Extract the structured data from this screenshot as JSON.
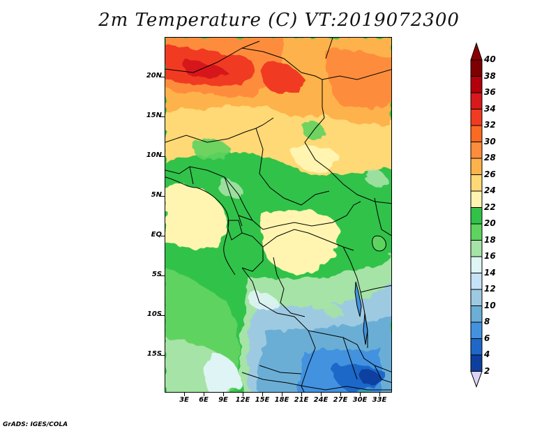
{
  "title": "2m Temperature (C) VT:2019072300",
  "credit": "GrADS: IGES/COLA",
  "lat_labels": [
    "20N",
    "15N",
    "10N",
    "5N",
    "EQ",
    "5S",
    "10S",
    "15S"
  ],
  "lon_labels": [
    "3E",
    "6E",
    "9E",
    "12E",
    "15E",
    "18E",
    "21E",
    "24E",
    "27E",
    "30E",
    "33E"
  ],
  "colorbar": {
    "labels": [
      "40",
      "38",
      "36",
      "34",
      "32",
      "30",
      "28",
      "26",
      "24",
      "22",
      "20",
      "18",
      "16",
      "14",
      "12",
      "10",
      "8",
      "6",
      "4",
      "2"
    ],
    "colors": [
      "#7f0000",
      "#b3000c",
      "#d7191c",
      "#f03b20",
      "#fb6a20",
      "#fd8d3c",
      "#feb24c",
      "#fed976",
      "#fff5b0",
      "#31c24a",
      "#5fd35f",
      "#a6e3a6",
      "#dff5f5",
      "#c6e2f7",
      "#9ecae1",
      "#6baed6",
      "#4292e0",
      "#1f67c8",
      "#0d3fa0",
      "#08216b"
    ],
    "over_color": "#8b0000",
    "under_color": "#dcd4f5"
  }
}
